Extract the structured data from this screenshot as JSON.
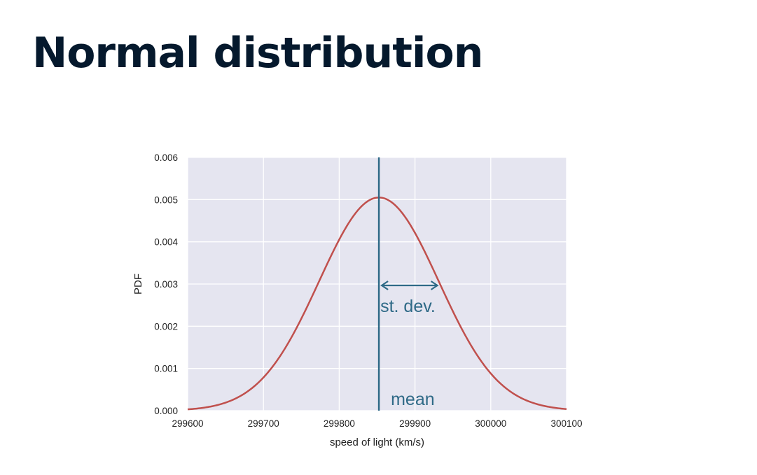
{
  "title": "Normal distribution",
  "chart_data": {
    "type": "line",
    "xlabel": "speed of light (km/s)",
    "ylabel": "PDF",
    "xlim": [
      299600,
      300100
    ],
    "ylim": [
      0,
      0.006
    ],
    "x_ticks": [
      299600,
      299700,
      299800,
      299900,
      300000,
      300100
    ],
    "x_tick_labels": [
      "299600",
      "299700",
      "299800",
      "299900",
      "300000",
      "300100"
    ],
    "y_ticks": [
      0,
      0.001,
      0.002,
      0.003,
      0.004,
      0.005,
      0.006
    ],
    "y_tick_labels": [
      "0.000",
      "0.001",
      "0.002",
      "0.003",
      "0.004",
      "0.005",
      "0.006"
    ],
    "grid": true,
    "curve": {
      "distribution": "normal",
      "mean": 299852.4,
      "std": 79
    },
    "annotations": {
      "mean_label": "mean",
      "std_label": "st. dev."
    },
    "colors": {
      "background": "#e5e5f0",
      "grid": "#ffffff",
      "curve": "#c0504d",
      "annotation": "#2f6a87",
      "title": "#05192d"
    }
  }
}
